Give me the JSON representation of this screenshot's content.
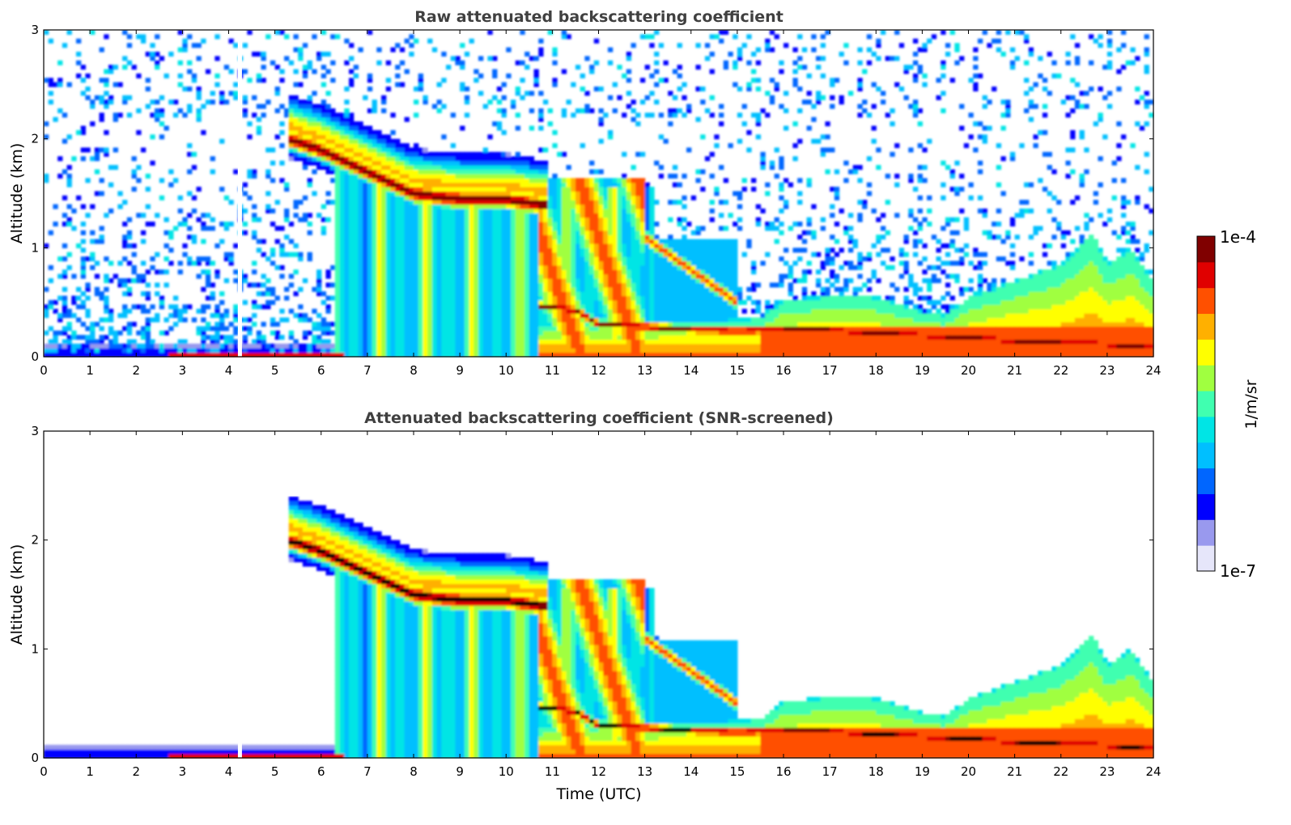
{
  "chart_data": [
    {
      "type": "heatmap",
      "title": "Raw attenuated backscattering coefficient",
      "xlabel": "",
      "ylabel": "Altitude (km)",
      "xlim": [
        0,
        24
      ],
      "ylim": [
        0,
        3
      ],
      "xticks": [
        "0",
        "1",
        "2",
        "3",
        "4",
        "5",
        "6",
        "7",
        "8",
        "9",
        "10",
        "11",
        "12",
        "13",
        "14",
        "15",
        "16",
        "17",
        "18",
        "19",
        "20",
        "21",
        "22",
        "23",
        "24"
      ],
      "yticks": [
        "0",
        "1",
        "2",
        "3"
      ],
      "screened": false,
      "dense_layer": [
        [
          5.3,
          2.0
        ],
        [
          6,
          1.9
        ],
        [
          7,
          1.7
        ],
        [
          8,
          1.5
        ],
        [
          9,
          1.45
        ],
        [
          10,
          1.45
        ],
        [
          10.7,
          1.4
        ]
      ],
      "surface_layer": [
        [
          10.7,
          0.47
        ],
        [
          11.5,
          0.43
        ],
        [
          12,
          0.3
        ],
        [
          13,
          0.28
        ],
        [
          14,
          0.25
        ],
        [
          15,
          0.24
        ],
        [
          16,
          0.25
        ],
        [
          17,
          0.25
        ],
        [
          18,
          0.22
        ],
        [
          19,
          0.2
        ],
        [
          20,
          0.18
        ],
        [
          21,
          0.15
        ],
        [
          22,
          0.13
        ],
        [
          23,
          0.12
        ],
        [
          24,
          0.08
        ]
      ],
      "boundary_layer_top": [
        [
          0,
          0.18
        ],
        [
          6,
          0.22
        ],
        [
          15.5,
          0.35
        ],
        [
          16,
          0.52
        ],
        [
          17,
          0.56
        ],
        [
          18,
          0.55
        ],
        [
          19,
          0.42
        ],
        [
          19.5,
          0.38
        ],
        [
          20,
          0.55
        ],
        [
          21,
          0.7
        ],
        [
          22,
          0.85
        ],
        [
          22.7,
          1.15
        ],
        [
          23,
          0.85
        ],
        [
          23.5,
          1.0
        ],
        [
          24,
          0.7
        ]
      ]
    },
    {
      "type": "heatmap",
      "title": "Attenuated backscattering coefficient (SNR-screened)",
      "xlabel": "Time (UTC)",
      "ylabel": "Altitude (km)",
      "xlim": [
        0,
        24
      ],
      "ylim": [
        0,
        3
      ],
      "xticks": [
        "0",
        "1",
        "2",
        "3",
        "4",
        "5",
        "6",
        "7",
        "8",
        "9",
        "10",
        "11",
        "12",
        "13",
        "14",
        "15",
        "16",
        "17",
        "18",
        "19",
        "20",
        "21",
        "22",
        "23",
        "24"
      ],
      "yticks": [
        "0",
        "1",
        "2",
        "3"
      ],
      "screened": true,
      "dense_layer": [
        [
          5.3,
          2.0
        ],
        [
          6,
          1.9
        ],
        [
          7,
          1.7
        ],
        [
          8,
          1.5
        ],
        [
          9,
          1.45
        ],
        [
          10,
          1.45
        ],
        [
          10.7,
          1.4
        ]
      ],
      "surface_layer": [
        [
          10.7,
          0.47
        ],
        [
          11.5,
          0.43
        ],
        [
          12,
          0.3
        ],
        [
          13,
          0.28
        ],
        [
          14,
          0.25
        ],
        [
          15,
          0.24
        ],
        [
          16,
          0.25
        ],
        [
          17,
          0.25
        ],
        [
          18,
          0.22
        ],
        [
          19,
          0.2
        ],
        [
          20,
          0.18
        ],
        [
          21,
          0.15
        ],
        [
          22,
          0.13
        ],
        [
          23,
          0.12
        ],
        [
          24,
          0.08
        ]
      ],
      "boundary_layer_top": [
        [
          0,
          0.18
        ],
        [
          6,
          0.22
        ],
        [
          15.5,
          0.35
        ],
        [
          16,
          0.52
        ],
        [
          17,
          0.56
        ],
        [
          18,
          0.55
        ],
        [
          19,
          0.42
        ],
        [
          19.5,
          0.38
        ],
        [
          20,
          0.55
        ],
        [
          21,
          0.7
        ],
        [
          22,
          0.85
        ],
        [
          22.7,
          1.15
        ],
        [
          23,
          0.85
        ],
        [
          23.5,
          1.0
        ],
        [
          24,
          0.7
        ]
      ]
    }
  ],
  "colorbar": {
    "max_label": "1e-4",
    "min_label": "1e-7",
    "unit_label": "1/m/sr",
    "colors": [
      "#e6e6fa",
      "#9999ee",
      "#0000ff",
      "#0066ff",
      "#00bfff",
      "#00e5e5",
      "#40ffb0",
      "#a0ff40",
      "#ffff00",
      "#ffb000",
      "#ff5000",
      "#e00000",
      "#800000"
    ]
  }
}
